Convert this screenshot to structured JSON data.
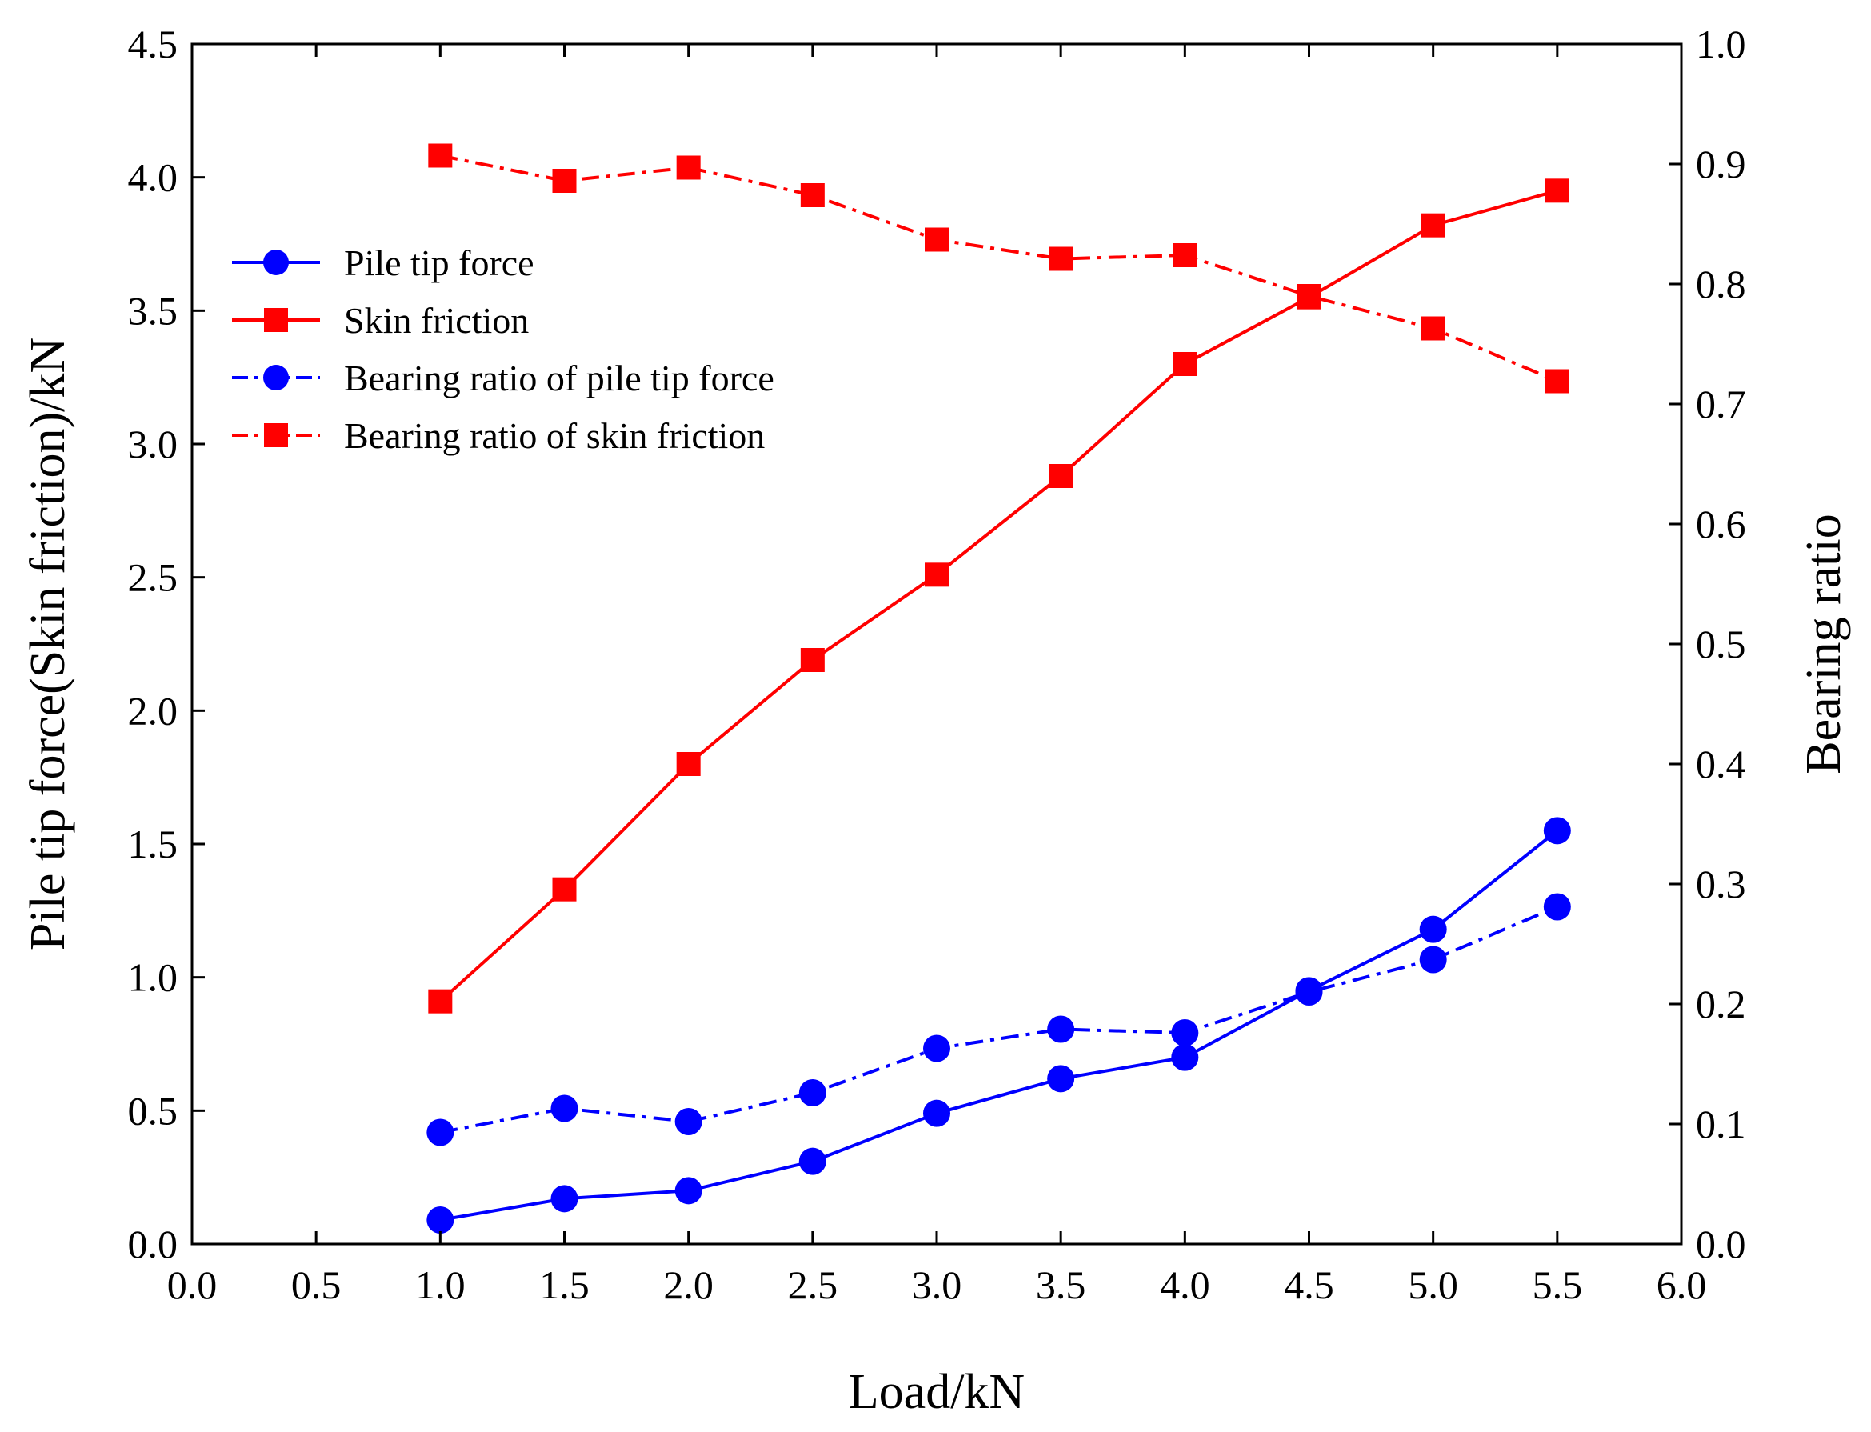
{
  "chart_data": {
    "type": "line",
    "title": "",
    "xlabel": "Load/kN",
    "ylabel_left": "Pile tip force(Skin friction)/kN",
    "ylabel_right": "Bearing ratio",
    "xlim": [
      0.0,
      6.0
    ],
    "ylim_left": [
      0.0,
      4.5
    ],
    "ylim_right": [
      0.0,
      1.0
    ],
    "grid": false,
    "legend_position": "top-left",
    "x_ticks": [
      "0.0",
      "0.5",
      "1.0",
      "1.5",
      "2.0",
      "2.5",
      "3.0",
      "3.5",
      "4.0",
      "4.5",
      "5.0",
      "5.5",
      "6.0"
    ],
    "y_ticks_left": [
      "0.0",
      "0.5",
      "1.0",
      "1.5",
      "2.0",
      "2.5",
      "3.0",
      "3.5",
      "4.0",
      "4.5"
    ],
    "y_ticks_right": [
      "0.0",
      "0.1",
      "0.2",
      "0.3",
      "0.4",
      "0.5",
      "0.6",
      "0.7",
      "0.8",
      "0.9",
      "1.0"
    ],
    "x": [
      1.0,
      1.5,
      2.0,
      2.5,
      3.0,
      3.5,
      4.0,
      4.5,
      5.0,
      5.5
    ],
    "series": [
      {
        "name": "Pile tip force",
        "axis": "left",
        "color": "#0000ff",
        "line": "solid",
        "marker": "circle",
        "values": [
          0.09,
          0.17,
          0.2,
          0.31,
          0.49,
          0.62,
          0.7,
          0.95,
          1.18,
          1.55
        ]
      },
      {
        "name": "Skin friction",
        "axis": "left",
        "color": "#ff0000",
        "line": "solid",
        "marker": "square",
        "values": [
          0.91,
          1.33,
          1.8,
          2.19,
          2.51,
          2.88,
          3.3,
          3.55,
          3.82,
          3.95
        ]
      },
      {
        "name": "Bearing ratio of pile tip force",
        "axis": "right",
        "color": "#0000ff",
        "line": "dashdot",
        "marker": "circle",
        "values": [
          0.093,
          0.113,
          0.102,
          0.126,
          0.163,
          0.179,
          0.176,
          0.21,
          0.237,
          0.281
        ]
      },
      {
        "name": "Bearing ratio of skin friction",
        "axis": "right",
        "color": "#ff0000",
        "line": "dashdot",
        "marker": "square",
        "values": [
          0.907,
          0.886,
          0.897,
          0.874,
          0.837,
          0.821,
          0.824,
          0.79,
          0.763,
          0.719
        ]
      }
    ]
  }
}
